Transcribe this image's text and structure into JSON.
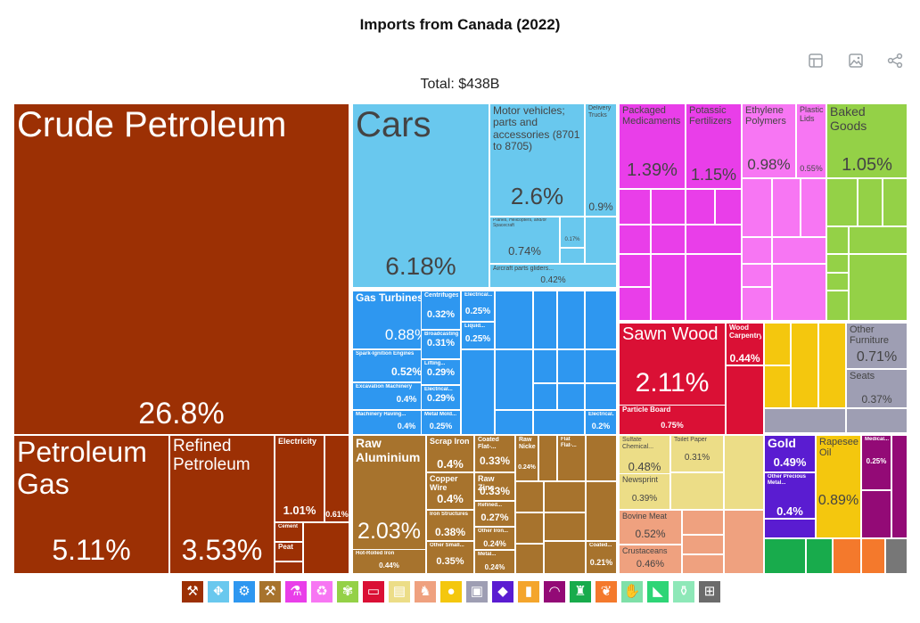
{
  "title": "Imports from Canada (2022)",
  "total_label": "Total: $438B",
  "toolbar": {
    "icons": [
      "table-view-icon",
      "image-download-icon",
      "share-icon"
    ]
  },
  "colors": {
    "mineral": "#9c3004",
    "transport": "#69c8ee",
    "machinery": "#2e97f0",
    "metals": "#a7732d",
    "chemicals": "#e93ee9",
    "plastics": "#f776f3",
    "food": "#94d147",
    "wood": "#da1035",
    "paper": "#ecdd87",
    "animal": "#efa17f",
    "stone": "#5a1cd1",
    "furniture": "#9e9eb3",
    "vegetable": "#f4c70e",
    "instruments": "#930a76",
    "textiles": "#18ab4c",
    "misc": "#f4792c",
    "arms": "#777777"
  },
  "legend": [
    {
      "icon": "pickaxe-icon",
      "color": "#9c3004",
      "glyph": "⚒"
    },
    {
      "icon": "road-icon",
      "color": "#69c8ee",
      "glyph": "⛖"
    },
    {
      "icon": "gear-icon",
      "color": "#2e97f0",
      "glyph": "⚙"
    },
    {
      "icon": "anvil-icon",
      "color": "#a7732d",
      "glyph": "⚒"
    },
    {
      "icon": "flask-icon",
      "color": "#e93ee9",
      "glyph": "⚗"
    },
    {
      "icon": "recycle-icon",
      "color": "#f776f3",
      "glyph": "♻"
    },
    {
      "icon": "wheat-icon",
      "color": "#94d147",
      "glyph": "✾"
    },
    {
      "icon": "log-icon",
      "color": "#da1035",
      "glyph": "▭"
    },
    {
      "icon": "paper-icon",
      "color": "#ecdd87",
      "glyph": "▤"
    },
    {
      "icon": "cow-icon",
      "color": "#efa17f",
      "glyph": "♞"
    },
    {
      "icon": "orange-icon",
      "color": "#f4c70e",
      "glyph": "●"
    },
    {
      "icon": "box-icon",
      "color": "#9e9eb3",
      "glyph": "▣"
    },
    {
      "icon": "diamond-icon",
      "color": "#5a1cd1",
      "glyph": "◆"
    },
    {
      "icon": "battery-icon",
      "color": "#f4a52c",
      "glyph": "▮"
    },
    {
      "icon": "gauge-icon",
      "color": "#930a76",
      "glyph": "◠"
    },
    {
      "icon": "shirt-icon",
      "color": "#18ab4c",
      "glyph": "♜"
    },
    {
      "icon": "leaf-icon",
      "color": "#f4792c",
      "glyph": "❦"
    },
    {
      "icon": "glove-icon",
      "color": "#7fe0a8",
      "glyph": "✋"
    },
    {
      "icon": "shoe-icon",
      "color": "#2ed576",
      "glyph": "◣"
    },
    {
      "icon": "bottles-icon",
      "color": "#8ee8b8",
      "glyph": "⚱"
    },
    {
      "icon": "easel-icon",
      "color": "#6b6b6b",
      "glyph": "⊞"
    }
  ],
  "chart_data": {
    "type": "treemap",
    "title": "Imports from Canada (2022)",
    "total": "$438B",
    "unit": "% of total",
    "items": [
      {
        "name": "Crude Petroleum",
        "value": 26.8,
        "label": "26.8%",
        "group": "mineral"
      },
      {
        "name": "Petroleum Gas",
        "value": 5.11,
        "label": "5.11%",
        "group": "mineral"
      },
      {
        "name": "Refined Petroleum",
        "value": 3.53,
        "label": "3.53%",
        "group": "mineral"
      },
      {
        "name": "Electricity",
        "value": 1.01,
        "label": "1.01%",
        "group": "mineral"
      },
      {
        "name": "",
        "value": 0.61,
        "label": "0.61%",
        "group": "mineral"
      },
      {
        "name": "Cement",
        "value": null,
        "label": "",
        "group": "mineral"
      },
      {
        "name": "Peat",
        "value": null,
        "label": "",
        "group": "mineral"
      },
      {
        "name": "Cars",
        "value": 6.18,
        "label": "6.18%",
        "group": "transport"
      },
      {
        "name": "Motor vehicles; parts and accessories (8701 to 8705)",
        "value": 2.6,
        "label": "2.6%",
        "group": "transport"
      },
      {
        "name": "Delivery Trucks",
        "value": 0.9,
        "label": "0.9%",
        "group": "transport"
      },
      {
        "name": "Planes, Helicopters, and/or Spacecraft",
        "value": 0.74,
        "label": "0.74%",
        "group": "transport"
      },
      {
        "name": "Aircraft parts gliders...",
        "value": 0.42,
        "label": "0.42%",
        "group": "transport"
      },
      {
        "name": "",
        "value": 0.17,
        "label": "0.17%",
        "group": "transport"
      },
      {
        "name": "Gas Turbines",
        "value": 0.88,
        "label": "0.88%",
        "group": "machinery"
      },
      {
        "name": "Spark-Ignition Engines",
        "value": 0.52,
        "label": "0.52%",
        "group": "machinery"
      },
      {
        "name": "Excavation Machinery",
        "value": 0.4,
        "label": "0.4%",
        "group": "machinery"
      },
      {
        "name": "Machinery Having...",
        "value": 0.4,
        "label": "0.4%",
        "group": "machinery"
      },
      {
        "name": "Centrifuges",
        "value": 0.32,
        "label": "0.32%",
        "group": "machinery"
      },
      {
        "name": "Broadcasting...",
        "value": 0.31,
        "label": "0.31%",
        "group": "machinery"
      },
      {
        "name": "Lifting...",
        "value": 0.29,
        "label": "0.29%",
        "group": "machinery"
      },
      {
        "name": "Electrical...",
        "value": 0.29,
        "label": "0.29%",
        "group": "machinery"
      },
      {
        "name": "Metal Mold...",
        "value": 0.25,
        "label": "0.25%",
        "group": "machinery"
      },
      {
        "name": "Electrical...",
        "value": 0.25,
        "label": "0.25%",
        "group": "machinery"
      },
      {
        "name": "Liquid...",
        "value": 0.25,
        "label": "0.25%",
        "group": "machinery"
      },
      {
        "name": "Electrical...",
        "value": 0.2,
        "label": "0.2%",
        "group": "machinery"
      },
      {
        "name": "Raw Aluminium",
        "value": 2.03,
        "label": "2.03%",
        "group": "metals"
      },
      {
        "name": "Scrap Iron",
        "value": 0.4,
        "label": "0.4%",
        "group": "metals"
      },
      {
        "name": "Copper Wire",
        "value": 0.4,
        "label": "0.4%",
        "group": "metals"
      },
      {
        "name": "Iron Structures",
        "value": 0.38,
        "label": "0.38%",
        "group": "metals"
      },
      {
        "name": "Other Small...",
        "value": 0.35,
        "label": "0.35%",
        "group": "metals"
      },
      {
        "name": "Hot-Rolled Iron",
        "value": 0.44,
        "label": "0.44%",
        "group": "metals"
      },
      {
        "name": "Coated Flat-...",
        "value": 0.33,
        "label": "0.33%",
        "group": "metals"
      },
      {
        "name": "Raw Zinc",
        "value": 0.33,
        "label": "0.33%",
        "group": "metals"
      },
      {
        "name": "Refined...",
        "value": 0.27,
        "label": "0.27%",
        "group": "metals"
      },
      {
        "name": "Other Iron...",
        "value": 0.24,
        "label": "0.24%",
        "group": "metals"
      },
      {
        "name": "Metal...",
        "value": 0.24,
        "label": "0.24%",
        "group": "metals"
      },
      {
        "name": "Raw Nickel",
        "value": 0.24,
        "label": "0.24%",
        "group": "metals"
      },
      {
        "name": "Flat Flat-...",
        "value": 0.2,
        "label": "0.2%",
        "group": "metals"
      },
      {
        "name": "Coated...",
        "value": 0.21,
        "label": "0.21%",
        "group": "metals"
      },
      {
        "name": "Packaged Medicaments",
        "value": 1.39,
        "label": "1.39%",
        "group": "chemicals"
      },
      {
        "name": "Potassic Fertilizers",
        "value": 1.15,
        "label": "1.15%",
        "group": "chemicals"
      },
      {
        "name": "Ethylene Polymers",
        "value": 0.98,
        "label": "0.98%",
        "group": "plastics"
      },
      {
        "name": "Plastic Lids",
        "value": 0.55,
        "label": "0.55%",
        "group": "plastics"
      },
      {
        "name": "Baked Goods",
        "value": 1.05,
        "label": "1.05%",
        "group": "food"
      },
      {
        "name": "Sawn Wood",
        "value": 2.11,
        "label": "2.11%",
        "group": "wood"
      },
      {
        "name": "Wood Carpentry",
        "value": 0.44,
        "label": "0.44%",
        "group": "wood"
      },
      {
        "name": "Particle Board",
        "value": 0.75,
        "label": "0.75%",
        "group": "wood"
      },
      {
        "name": "Sulfate Chemical...",
        "value": 0.48,
        "label": "0.48%",
        "group": "paper"
      },
      {
        "name": "Toilet Paper",
        "value": 0.31,
        "label": "0.31%",
        "group": "paper"
      },
      {
        "name": "Newsprint",
        "value": 0.39,
        "label": "0.39%",
        "group": "paper"
      },
      {
        "name": "Bovine Meat",
        "value": 0.52,
        "label": "0.52%",
        "group": "animal"
      },
      {
        "name": "Crustaceans",
        "value": 0.46,
        "label": "0.46%",
        "group": "animal"
      },
      {
        "name": "Other Furniture",
        "value": 0.71,
        "label": "0.71%",
        "group": "furniture"
      },
      {
        "name": "Seats",
        "value": 0.37,
        "label": "0.37%",
        "group": "furniture"
      },
      {
        "name": "Gold",
        "value": 0.49,
        "label": "0.49%",
        "group": "stone"
      },
      {
        "name": "Other Precious Metal...",
        "value": 0.4,
        "label": "0.4%",
        "group": "stone"
      },
      {
        "name": "Rapeseed Oil",
        "value": 0.89,
        "label": "0.89%",
        "group": "vegetable"
      },
      {
        "name": "Medical...",
        "value": 0.25,
        "label": "0.25%",
        "group": "instruments"
      }
    ]
  }
}
